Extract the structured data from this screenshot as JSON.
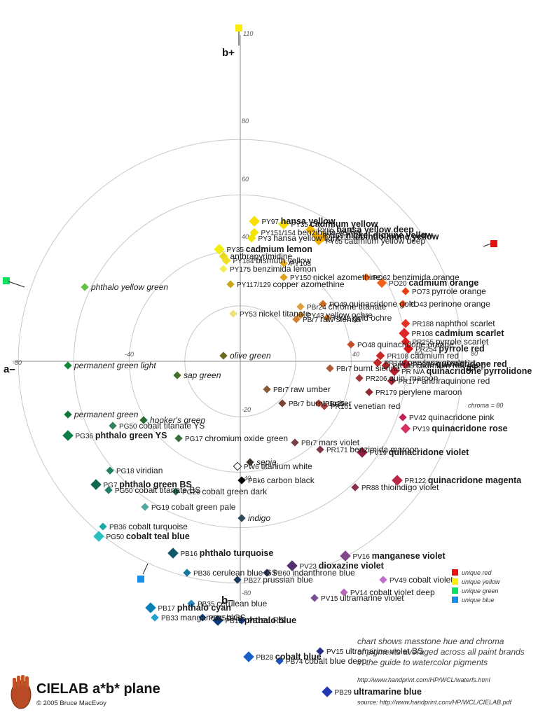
{
  "chart_data": {
    "type": "scatter",
    "title": "CIELAB a*b* plane",
    "x_axis": {
      "neg_label": "a–",
      "pos_label": "a+",
      "ticks": [
        -80,
        -40,
        40,
        60,
        80
      ]
    },
    "y_axis": {
      "neg_label": "b–",
      "pos_label": "b+",
      "ticks": [
        110,
        80,
        60,
        40,
        -20,
        -40,
        -80
      ]
    },
    "chroma_note": "chroma = 80",
    "points": [
      {
        "code": "PY97",
        "name": "hansa yellow",
        "bold": true,
        "a": 10,
        "b": 100,
        "color": "#f8e000",
        "size": 11
      },
      {
        "code": "PY151/154",
        "name": "benzimida yellow",
        "a": 10,
        "b": 92,
        "color": "#f4e400",
        "size": 9
      },
      {
        "code": "PY3",
        "name": "hansa yellow light",
        "a": 8,
        "b": 88,
        "color": "#eee600",
        "size": 9
      },
      {
        "code": "PY35",
        "name": "cadmium yellow",
        "bold": true,
        "a": 31,
        "b": 98,
        "color": "#f6dd00",
        "size": 11
      },
      {
        "code": "PY65",
        "name": "hansa yellow deep",
        "bold": true,
        "a": 50,
        "b": 94,
        "color": "#f7b800",
        "size": 10
      },
      {
        "code": "PY153",
        "name": "nickel dioxine yellow",
        "bold": true,
        "a": 54,
        "b": 90,
        "color": "#f0b000",
        "size": 9
      },
      {
        "code": "PY110",
        "name": "isoindolinone yellow",
        "bold": true,
        "a": 59,
        "b": 89,
        "color": "#f2a900",
        "size": 11
      },
      {
        "code": "PY65",
        "name": "cadmium yellow deep",
        "a": 56,
        "b": 86,
        "color": "#f4ae00",
        "size": 9
      },
      {
        "code": "PY35",
        "name": "cadmium lemon",
        "bold": true,
        "a": -15,
        "b": 80,
        "color": "#f2ee10",
        "size": 11
      },
      {
        "code": "",
        "name": "anthrapyrimidine",
        "a": -12,
        "b": 75,
        "color": "#e8d820",
        "size": 9
      },
      {
        "code": "PY184",
        "name": "bismuth yellow",
        "a": -10,
        "b": 72,
        "color": "#efe020",
        "size": 9
      },
      {
        "code": "PY108",
        "name": "",
        "a": 31,
        "b": 70,
        "color": "#e8a820",
        "size": 8
      },
      {
        "code": "PY175",
        "name": "benzimida lemon",
        "a": -12,
        "b": 66,
        "color": "#f3ef50",
        "size": 8
      },
      {
        "code": "PY150",
        "name": "nickel azomethine",
        "a": 31,
        "b": 60,
        "color": "#e0a020",
        "size": 8
      },
      {
        "code": "PY117/129",
        "name": "copper azomethine",
        "a": -7,
        "b": 55,
        "color": "#c8a818",
        "size": 8
      },
      {
        "code": "PO62",
        "name": "benzimida orange",
        "bold": false,
        "a": 90,
        "b": 60,
        "color": "#f07020",
        "size": 8
      },
      {
        "code": "PO20",
        "name": "cadmium orange",
        "bold": true,
        "a": 101,
        "b": 56,
        "color": "#f06018",
        "size": 10
      },
      {
        "code": "PO73",
        "name": "pyrrole orange",
        "a": 118,
        "b": 50,
        "color": "#e84010",
        "size": 8
      },
      {
        "code": "PO43",
        "name": "perinone orange",
        "a": 116,
        "b": 41,
        "color": "#ec5020",
        "size": 8
      },
      {
        "code": "PBr24",
        "name": "chrome titanate",
        "a": 43,
        "b": 39,
        "color": "#e0a040",
        "size": 8
      },
      {
        "code": "PO49",
        "name": "quinacridone gold",
        "a": 59,
        "b": 41,
        "color": "#d07020",
        "size": 8
      },
      {
        "code": "PY53",
        "name": "nickel titanate",
        "a": -5,
        "b": 34,
        "color": "#f0e078",
        "size": 8
      },
      {
        "code": "PY43",
        "name": "yellow ochre",
        "a": 43,
        "b": 33,
        "color": "#d8902c",
        "size": 8
      },
      {
        "code": "PBr7",
        "name": "raw sienna",
        "a": 40,
        "b": 30,
        "color": "#d08030",
        "size": 8
      },
      {
        "code": "PY42",
        "name": "gold ochre",
        "a": 62,
        "b": 31,
        "color": "#d07828",
        "size": 8
      },
      {
        "code": "PO48",
        "name": "quinacridone orange",
        "a": 79,
        "b": 12,
        "color": "#c85028",
        "size": 8
      },
      {
        "code": "PR188",
        "name": "naphthol scarlet",
        "a": 118,
        "b": 27,
        "color": "#e83020",
        "size": 9
      },
      {
        "code": "PR108",
        "name": "cadmium scarlet",
        "bold": true,
        "a": 117,
        "b": 20,
        "color": "#e02828",
        "size": 11
      },
      {
        "code": "PR255",
        "name": "pyrrole scarlet",
        "a": 118,
        "b": 14,
        "color": "#e02020",
        "size": 9
      },
      {
        "code": "PR254",
        "name": "pyrrole red",
        "bold": true,
        "a": 120,
        "b": 9,
        "color": "#d81818",
        "size": 10
      },
      {
        "code": "PR209",
        "name": "quinacridone red",
        "bold": true,
        "a": 118,
        "b": -2,
        "color": "#d02030",
        "size": 10
      },
      {
        "code": "PR108",
        "name": "cadmium red",
        "a": 100,
        "b": 4,
        "color": "#c82828",
        "size": 9
      },
      {
        "code": "PR149",
        "name": "perylene scarlet",
        "a": 98,
        "b": -1,
        "color": "#c02828",
        "size": 9
      },
      {
        "code": "PR108",
        "name": "cadmium red deep",
        "a": 104,
        "b": -3,
        "color": "#b02828",
        "size": 9
      },
      {
        "code": "PR N/A",
        "name": "quinacridone pyrrolidone",
        "bold": true,
        "a": 110,
        "b": -7,
        "color": "#b82030",
        "size": 10
      },
      {
        "code": "PR177",
        "name": "anthraquinone red",
        "a": 108,
        "b": -14,
        "color": "#a82838",
        "size": 9
      },
      {
        "code": "PBr7",
        "name": "burnt sienna",
        "a": 64,
        "b": -5,
        "color": "#b05838",
        "size": 8
      },
      {
        "code": "PR206",
        "name": "quin. maroon",
        "a": 85,
        "b": -12,
        "color": "#a03838",
        "size": 8
      },
      {
        "code": "PR179",
        "name": "perylene maroon",
        "a": 92,
        "b": -22,
        "color": "#902838",
        "size": 8
      },
      {
        "code": "PBr25",
        "name": "",
        "a": 56,
        "b": -30,
        "color": "#a04838",
        "size": 8
      },
      {
        "code": "PR101",
        "name": "venetian red",
        "a": 60,
        "b": -32,
        "color": "#a84040",
        "size": 8
      },
      {
        "code": "PBr7",
        "name": "raw umber",
        "a": 19,
        "b": -20,
        "color": "#885838",
        "size": 8
      },
      {
        "code": "PBr7",
        "name": "burnt umber",
        "a": 30,
        "b": -30,
        "color": "#804030",
        "size": 8
      },
      {
        "code": "PV42",
        "name": "quinacridone pink",
        "a": 116,
        "b": -40,
        "color": "#c02058",
        "size": 8
      },
      {
        "code": "PV19",
        "name": "quinacridone rose",
        "bold": true,
        "a": 118,
        "b": -48,
        "color": "#d83060",
        "size": 10
      },
      {
        "code": "PV19",
        "name": "quinacridone violet",
        "bold": true,
        "a": 87,
        "b": -65,
        "color": "#902040",
        "size": 11
      },
      {
        "code": "PR122",
        "name": "quinacridone magenta",
        "bold": true,
        "a": 112,
        "b": -85,
        "color": "#b82848",
        "size": 11
      },
      {
        "code": "PBr7",
        "name": "mars violet",
        "a": 39,
        "b": -58,
        "color": "#784048",
        "size": 8
      },
      {
        "code": "PR171",
        "name": "benzimida maroon",
        "a": 57,
        "b": -63,
        "color": "#803848",
        "size": 8
      },
      {
        "code": "",
        "name": "sepia",
        "italic": true,
        "a": 7,
        "b": -72,
        "color": "#403530",
        "size": 8
      },
      {
        "code": "PR88",
        "name": "thioindigo violet",
        "a": 82,
        "b": -90,
        "color": "#883050",
        "size": 8
      },
      {
        "code": "PW6",
        "name": "titanium white",
        "a": -2,
        "b": -75,
        "color": "#ffffff",
        "size": 8
      },
      {
        "code": "PBk6",
        "name": "carbon black",
        "a": 1,
        "b": -85,
        "color": "#000000",
        "size": 8
      },
      {
        "code": "",
        "name": "indigo",
        "italic": true,
        "a": 1,
        "b": -112,
        "color": "#304858",
        "size": 8
      },
      {
        "code": "",
        "name": "olive green",
        "italic": true,
        "a": -12,
        "b": 4,
        "color": "#6a6a20",
        "size": 8
      },
      {
        "code": "",
        "name": "sap green",
        "italic": true,
        "a": -45,
        "b": -10,
        "color": "#407028",
        "size": 8
      },
      {
        "code": "",
        "name": "hooker's green",
        "italic": true,
        "a": -69,
        "b": -42,
        "color": "#2a6a30",
        "size": 8
      },
      {
        "code": "PG50",
        "name": "cobalt titanate YS",
        "a": -91,
        "b": -46,
        "color": "#308058",
        "size": 8
      },
      {
        "code": "PG17",
        "name": "chromium oxide green",
        "a": -44,
        "b": -55,
        "color": "#3a7040",
        "size": 8
      },
      {
        "code": "",
        "name": "permanent green light",
        "italic": true,
        "a": -123,
        "b": -3,
        "color": "#108838",
        "size": 8
      },
      {
        "code": "",
        "name": "permanent green",
        "italic": true,
        "a": -123,
        "b": -38,
        "color": "#107838",
        "size": 8
      },
      {
        "code": "PG36",
        "name": "phthalo green YS",
        "bold": true,
        "a": -123,
        "b": -53,
        "color": "#0a8048",
        "size": 11
      },
      {
        "code": "",
        "name": "phthalo yellow green",
        "italic": true,
        "a": -111,
        "b": 53,
        "color": "#60c040",
        "size": 8
      },
      {
        "code": "PG18",
        "name": "viridian",
        "a": -93,
        "b": -78,
        "color": "#208060",
        "size": 8
      },
      {
        "code": "PG7",
        "name": "phthalo green BS",
        "bold": true,
        "a": -103,
        "b": -88,
        "color": "#106850",
        "size": 11
      },
      {
        "code": "PG50",
        "name": "cobalt titanate BS",
        "a": -94,
        "b": -92,
        "color": "#208068",
        "size": 8
      },
      {
        "code": "PG26",
        "name": "cobalt green dark",
        "a": -46,
        "b": -93,
        "color": "#306858",
        "size": 8
      },
      {
        "code": "PG19",
        "name": "cobalt green pale",
        "a": -68,
        "b": -104,
        "color": "#50a8a0",
        "size": 8
      },
      {
        "code": "PB36",
        "name": "cobalt turquoise",
        "a": -98,
        "b": -118,
        "color": "#20a8a8",
        "size": 8
      },
      {
        "code": "PG50",
        "name": "cobalt teal blue",
        "bold": true,
        "a": -101,
        "b": -125,
        "color": "#28c0c0",
        "size": 11
      },
      {
        "code": "PB16",
        "name": "phthalo turquoise",
        "bold": true,
        "a": -48,
        "b": -137,
        "color": "#105868",
        "size": 11
      },
      {
        "code": "PB36",
        "name": "cerulean blue GS",
        "a": -38,
        "b": -151,
        "color": "#1878a0",
        "size": 8
      },
      {
        "code": "PB27",
        "name": "prussian blue",
        "a": -2,
        "b": -156,
        "color": "#1c3c60",
        "size": 8
      },
      {
        "code": "PB60",
        "name": "indanthrone blue",
        "a": 19,
        "b": -151,
        "color": "#283858",
        "size": 8
      },
      {
        "code": "PV23",
        "name": "dioxazine violet",
        "bold": true,
        "a": 37,
        "b": -146,
        "color": "#503070",
        "size": 11
      },
      {
        "code": "PV16",
        "name": "manganese violet",
        "bold": true,
        "a": 75,
        "b": -139,
        "color": "#804888",
        "size": 11
      },
      {
        "code": "PV49",
        "name": "cobalt violet",
        "a": 102,
        "b": -156,
        "color": "#c070c8",
        "size": 8
      },
      {
        "code": "PV14",
        "name": "cobalt violet deep",
        "a": 74,
        "b": -165,
        "color": "#b868b8",
        "size": 8
      },
      {
        "code": "PV15",
        "name": "ultramarine violet",
        "a": 53,
        "b": -169,
        "color": "#785098",
        "size": 8
      },
      {
        "code": "PB35",
        "name": "cerulean blue",
        "a": -35,
        "b": -173,
        "color": "#2888c0",
        "size": 8
      },
      {
        "code": "PB17",
        "name": "phthalo cyan",
        "bold": true,
        "a": -64,
        "b": -176,
        "color": "#0880b8",
        "size": 11
      },
      {
        "code": "PB33",
        "name": "manganese blue",
        "a": -61,
        "b": -183,
        "color": "#20a0d0",
        "size": 8
      },
      {
        "code": "PB15:3",
        "name": "GS",
        "a": -27,
        "b": -183,
        "color": "#104888",
        "size": 8
      },
      {
        "code": "PB15",
        "name": "phthalo blue",
        "bold": true,
        "a": -16,
        "b": -185,
        "color": "#0c3c80",
        "size": 11
      },
      {
        "code": "PB15:1",
        "name": "RS",
        "a": 1,
        "b": -185,
        "color": "#183c90",
        "size": 8
      },
      {
        "code": "PB28",
        "name": "cobalt blue",
        "bold": true,
        "a": 6,
        "b": -211,
        "color": "#1860c8",
        "size": 11
      },
      {
        "code": "PB74",
        "name": "cobalt blue deep",
        "a": 28,
        "b": -214,
        "color": "#2050b8",
        "size": 8
      },
      {
        "code": "PV15",
        "name": "ultramarine violet BS",
        "a": 57,
        "b": -207,
        "color": "#28308c",
        "size": 8
      },
      {
        "code": "PB29",
        "name": "ultramarine blue",
        "bold": true,
        "a": 62,
        "b": -236,
        "color": "#2038b0",
        "size": 11
      }
    ]
  },
  "legend": {
    "items": [
      {
        "label": "unique red",
        "color": "#e81010"
      },
      {
        "label": "unique yellow",
        "color": "#f8f000"
      },
      {
        "label": "unique green",
        "color": "#10e060"
      },
      {
        "label": "unique blue",
        "color": "#1890e8"
      }
    ]
  },
  "notes": {
    "line1": "chart shows masstone hue and chroma",
    "line2": "of pigments averaged across all paint brands",
    "line3": "in the guide to watercolor pigments",
    "url1": "http://www.handprint.com/HP/WCL/waterfs.html",
    "source": "source: http://www.handprint.com/HP/WCL/CIELAB.pdf"
  },
  "footer": {
    "title": "CIELAB a*b* plane",
    "copyright": "© 2005 Bruce MacEvoy"
  }
}
